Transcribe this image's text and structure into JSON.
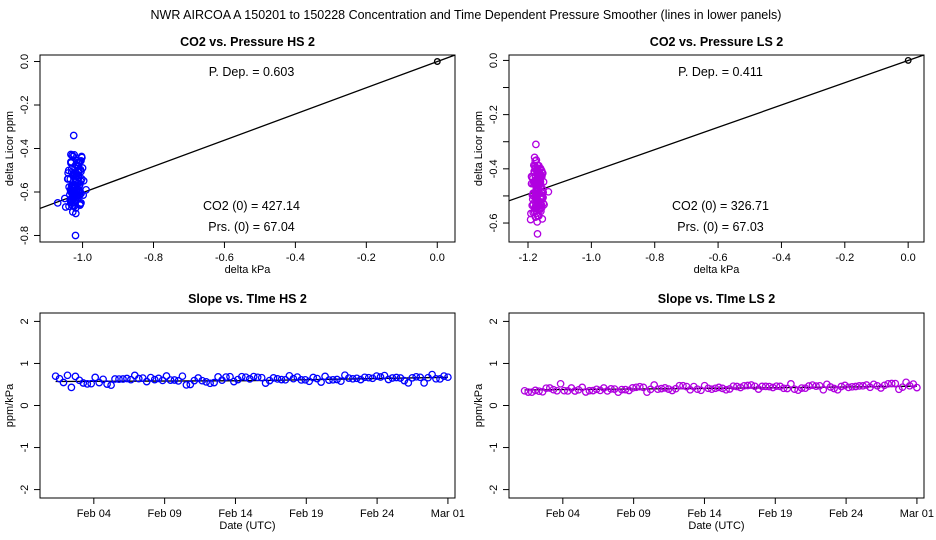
{
  "suptitle": "NWR   AIRCOA A   150201 to 150228   Concentration and Time Dependent Pressure Smoother (lines in lower panels)",
  "chart_data": [
    {
      "id": "p1",
      "type": "scatter",
      "title": "CO2 vs. Pressure HS 2",
      "xlabel": "delta kPa",
      "ylabel": "delta Licor ppm",
      "xlim": [
        -1.12,
        0.05
      ],
      "ylim": [
        -0.83,
        0.03
      ],
      "xticks": [
        -1.0,
        -0.8,
        -0.6,
        -0.4,
        -0.2,
        0.0
      ],
      "xtick_labels": [
        "-1.0",
        "-0.8",
        "-0.6",
        "-0.4",
        "-0.2",
        "0.0"
      ],
      "yticks": [
        0.0,
        -0.2,
        -0.4,
        -0.6,
        -0.8
      ],
      "ytick_labels": [
        "0.0",
        "-0.2",
        "-0.4",
        "-0.6",
        "-0.8"
      ],
      "color": "#0000ff",
      "cluster": {
        "x_center": -1.02,
        "x_spread": 0.02,
        "y_min": -0.8,
        "y_max": -0.34,
        "n": 110
      },
      "extra_points": [
        [
          -1.07,
          -0.65
        ],
        [
          -1.05,
          -0.63
        ],
        [
          -0.99,
          -0.59
        ],
        [
          0.0,
          0.0
        ]
      ],
      "fit_line": {
        "slope": 0.603,
        "intercept": 0.0
      },
      "annotations": {
        "pdep": "P. Dep. =  0.603",
        "co2_0": "CO2 (0) =  427.14",
        "prs_0": "Prs. (0) =  67.04"
      }
    },
    {
      "id": "p2",
      "type": "scatter",
      "title": "CO2 vs. Pressure LS 2",
      "xlabel": "delta kPa",
      "ylabel": "delta Licor ppm",
      "xlim": [
        -1.26,
        0.05
      ],
      "ylim": [
        -0.67,
        0.02
      ],
      "xticks": [
        -1.2,
        -1.0,
        -0.8,
        -0.6,
        -0.4,
        -0.2,
        0.0
      ],
      "xtick_labels": [
        "-1.2",
        "-1.0",
        "-0.8",
        "-0.6",
        "-0.4",
        "-0.2",
        "0.0"
      ],
      "yticks": [
        0.0,
        -0.2,
        -0.4,
        -0.6
      ],
      "ytick_labels": [
        "0.0",
        "-0.2",
        "-0.4",
        "-0.6"
      ],
      "minor_yticks": [
        -0.1,
        -0.3,
        -0.5
      ],
      "color": "#b000e0",
      "cluster": {
        "x_center": -1.17,
        "x_spread": 0.015,
        "y_min": -0.64,
        "y_max": -0.31,
        "n": 140
      },
      "extra_points": [
        [
          0.0,
          0.0
        ]
      ],
      "fit_line": {
        "slope": 0.411,
        "intercept": 0.0
      },
      "annotations": {
        "pdep": "P. Dep. =  0.411",
        "co2_0": "CO2 (0) =  326.71",
        "prs_0": "Prs. (0) =  67.03"
      }
    },
    {
      "id": "p3",
      "type": "scatter",
      "title": "Slope vs. TIme HS 2",
      "xlabel": "Date (UTC)",
      "ylabel": "ppm/kPa",
      "xlim": [
        0.2,
        29.5
      ],
      "ylim": [
        -2.2,
        2.2
      ],
      "xticks": [
        4,
        9,
        14,
        19,
        24,
        29
      ],
      "xtick_labels": [
        "Feb 04",
        "Feb 09",
        "Feb 14",
        "Feb 19",
        "Feb 24",
        "Mar 01"
      ],
      "yticks": [
        2,
        1,
        0,
        -1,
        -2
      ],
      "ytick_labels": [
        "2",
        "1",
        "0",
        "-1",
        "-2"
      ],
      "color": "#0000ff",
      "series": {
        "x_start": 1.3,
        "x_end": 29.0,
        "n": 100,
        "base": 0.58,
        "trend": 0.09,
        "noise": 0.06
      },
      "fit_line": {
        "points": [
          [
            1.3,
            0.57
          ],
          [
            15,
            0.59
          ],
          [
            29,
            0.67
          ]
        ]
      }
    },
    {
      "id": "p4",
      "type": "scatter",
      "title": "Slope vs. TIme LS 2",
      "xlabel": "Date (UTC)",
      "ylabel": "ppm/kPa",
      "xlim": [
        0.2,
        29.5
      ],
      "ylim": [
        -2.2,
        2.2
      ],
      "xticks": [
        4,
        9,
        14,
        19,
        24,
        29
      ],
      "xtick_labels": [
        "Feb 04",
        "Feb 09",
        "Feb 14",
        "Feb 19",
        "Feb 24",
        "Mar 01"
      ],
      "yticks": [
        2,
        1,
        0,
        -1,
        -2
      ],
      "ytick_labels": [
        "2",
        "1",
        "0",
        "-1",
        "-2"
      ],
      "color": "#b000e0",
      "series": {
        "x_start": 1.3,
        "x_end": 29.0,
        "n": 110,
        "base": 0.36,
        "trend": 0.1,
        "noise": 0.045
      },
      "fit_line": {
        "points": [
          [
            1.3,
            0.37
          ],
          [
            15,
            0.41
          ],
          [
            29,
            0.46
          ]
        ]
      }
    }
  ]
}
